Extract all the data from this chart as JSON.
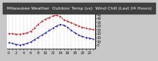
{
  "title": "Milwaukee Weather  Outdoor Temp (vs)  Wind Chill (Last 24 Hours)",
  "bg_color": "#c8c8c8",
  "plot_bg": "#ffffff",
  "red_label": "Outdoor Temp",
  "blue_label": "Wind Chill",
  "x_values": [
    0,
    1,
    2,
    3,
    4,
    5,
    6,
    7,
    8,
    9,
    10,
    11,
    12,
    13,
    14,
    15,
    16,
    17,
    18,
    19,
    20,
    21,
    22,
    23
  ],
  "red_values": [
    20,
    20,
    19,
    19,
    20,
    21,
    23,
    27,
    32,
    36,
    39,
    41,
    43,
    44,
    42,
    38,
    36,
    34,
    32,
    30,
    28,
    27,
    26,
    25
  ],
  "blue_values": [
    8,
    7,
    6,
    5,
    6,
    7,
    9,
    12,
    15,
    18,
    21,
    24,
    27,
    30,
    32,
    31,
    28,
    24,
    21,
    18,
    16,
    15,
    14,
    13
  ],
  "ylim": [
    0,
    50
  ],
  "ytick_values": [
    5,
    10,
    15,
    20,
    25,
    30,
    35,
    40,
    45
  ],
  "ytick_labels": [
    "5",
    "10",
    "15",
    "20",
    "25",
    "30",
    "35",
    "40",
    "45"
  ],
  "x_tick_labels": [
    "0",
    "",
    "2",
    "",
    "4",
    "",
    "6",
    "",
    "8",
    "",
    "10",
    "",
    "12",
    "",
    "14",
    "",
    "16",
    "",
    "18",
    "",
    "20",
    "",
    "22",
    ""
  ],
  "title_fontsize": 4.5,
  "tick_fontsize": 3.5,
  "line_width": 0.7,
  "marker_size": 1.2,
  "grid_color": "#999999",
  "red_color": "#cc0000",
  "blue_color": "#0000bb",
  "title_bg": "#404040",
  "title_fg": "#ffffff"
}
